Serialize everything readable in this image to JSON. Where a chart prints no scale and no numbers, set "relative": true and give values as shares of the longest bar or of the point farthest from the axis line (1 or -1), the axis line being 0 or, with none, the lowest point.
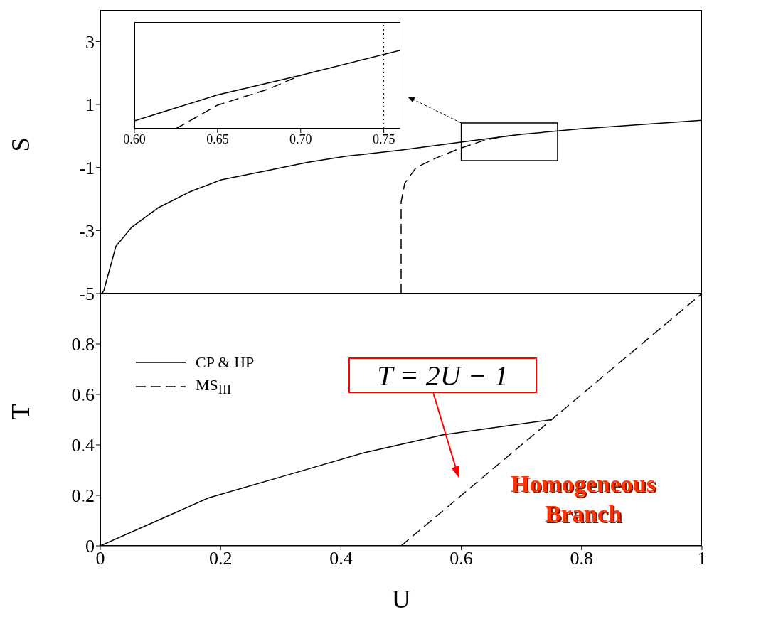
{
  "chart_data": [
    {
      "type": "line",
      "ylabel": "S",
      "xlim": [
        0,
        1
      ],
      "xticks": [
        0,
        0.2,
        0.4,
        0.6,
        0.8,
        1
      ],
      "ylim": [
        -5,
        4
      ],
      "yticks": [
        -5,
        -3,
        -1,
        1,
        3
      ],
      "tick_labels": "y",
      "series": [
        {
          "color": "#000000",
          "line_style": "solid",
          "x": [
            0.003,
            0.006,
            0.026,
            0.052,
            0.097,
            0.149,
            0.201,
            0.279,
            0.344,
            0.409,
            0.499,
            0.597,
            0.7,
            0.798,
            1.0
          ],
          "values": [
            -5,
            -4.9,
            -3.5,
            -2.9,
            -2.27,
            -1.77,
            -1.39,
            -1.09,
            -0.84,
            -0.64,
            -0.45,
            -0.2,
            0.05,
            0.23,
            0.5
          ]
        },
        {
          "color": "#000000",
          "line_style": "dashed",
          "x": [
            0.5,
            0.5,
            0.506,
            0.525,
            0.558,
            0.597,
            0.636,
            0.668,
            0.7
          ],
          "values": [
            -5,
            -2.1,
            -1.5,
            -1.0,
            -0.7,
            -0.4,
            -0.15,
            -0.02,
            0.05
          ]
        }
      ]
    },
    {
      "type": "line",
      "relative": true,
      "xlim": [
        0.6,
        0.76
      ],
      "xticks": [
        {
          "value": 0.6,
          "label": "0.60"
        },
        {
          "value": 0.65,
          "label": "0.65"
        },
        {
          "value": 0.7,
          "label": "0.70"
        },
        {
          "value": 0.75,
          "label": "0.75"
        }
      ],
      "tick_labels": "x",
      "ref_lines": [
        {
          "axis": "x",
          "value": 0.75,
          "line_style": "dotted",
          "color": "#000000"
        }
      ],
      "series": [
        {
          "color": "#000000",
          "line_style": "solid",
          "x": [
            0.6,
            0.65,
            0.7,
            0.76
          ],
          "values": [
            0.1,
            0.43,
            0.68,
            1
          ]
        },
        {
          "color": "#000000",
          "line_style": "dashed",
          "x": [
            0.625,
            0.65,
            0.68,
            0.7
          ],
          "values": [
            0,
            0.3,
            0.5,
            0.68
          ]
        }
      ]
    },
    {
      "type": "line",
      "xlabel": "U",
      "ylabel": "T",
      "xlim": [
        0,
        1
      ],
      "xticks": [
        0,
        0.2,
        0.4,
        0.6,
        0.8,
        1
      ],
      "ylim": [
        0,
        1
      ],
      "yticks": [
        0,
        0.2,
        0.4,
        0.6,
        0.8
      ],
      "legend": "top left",
      "annotations": [
        "T = 2U − 1",
        "Homogeneous Branch"
      ],
      "series": [
        {
          "name": "CP & HP",
          "color": "#000000",
          "line_style": "solid",
          "x": [
            0,
            0.18,
            0.31,
            0.44,
            0.57,
            0.75
          ],
          "values": [
            0,
            0.19,
            0.28,
            0.37,
            0.44,
            0.5
          ]
        },
        {
          "name": "MS$_{III}$",
          "color": "#000000",
          "line_style": "dashed",
          "x": [
            0.5,
            1
          ],
          "values": [
            0,
            1
          ]
        }
      ]
    }
  ]
}
